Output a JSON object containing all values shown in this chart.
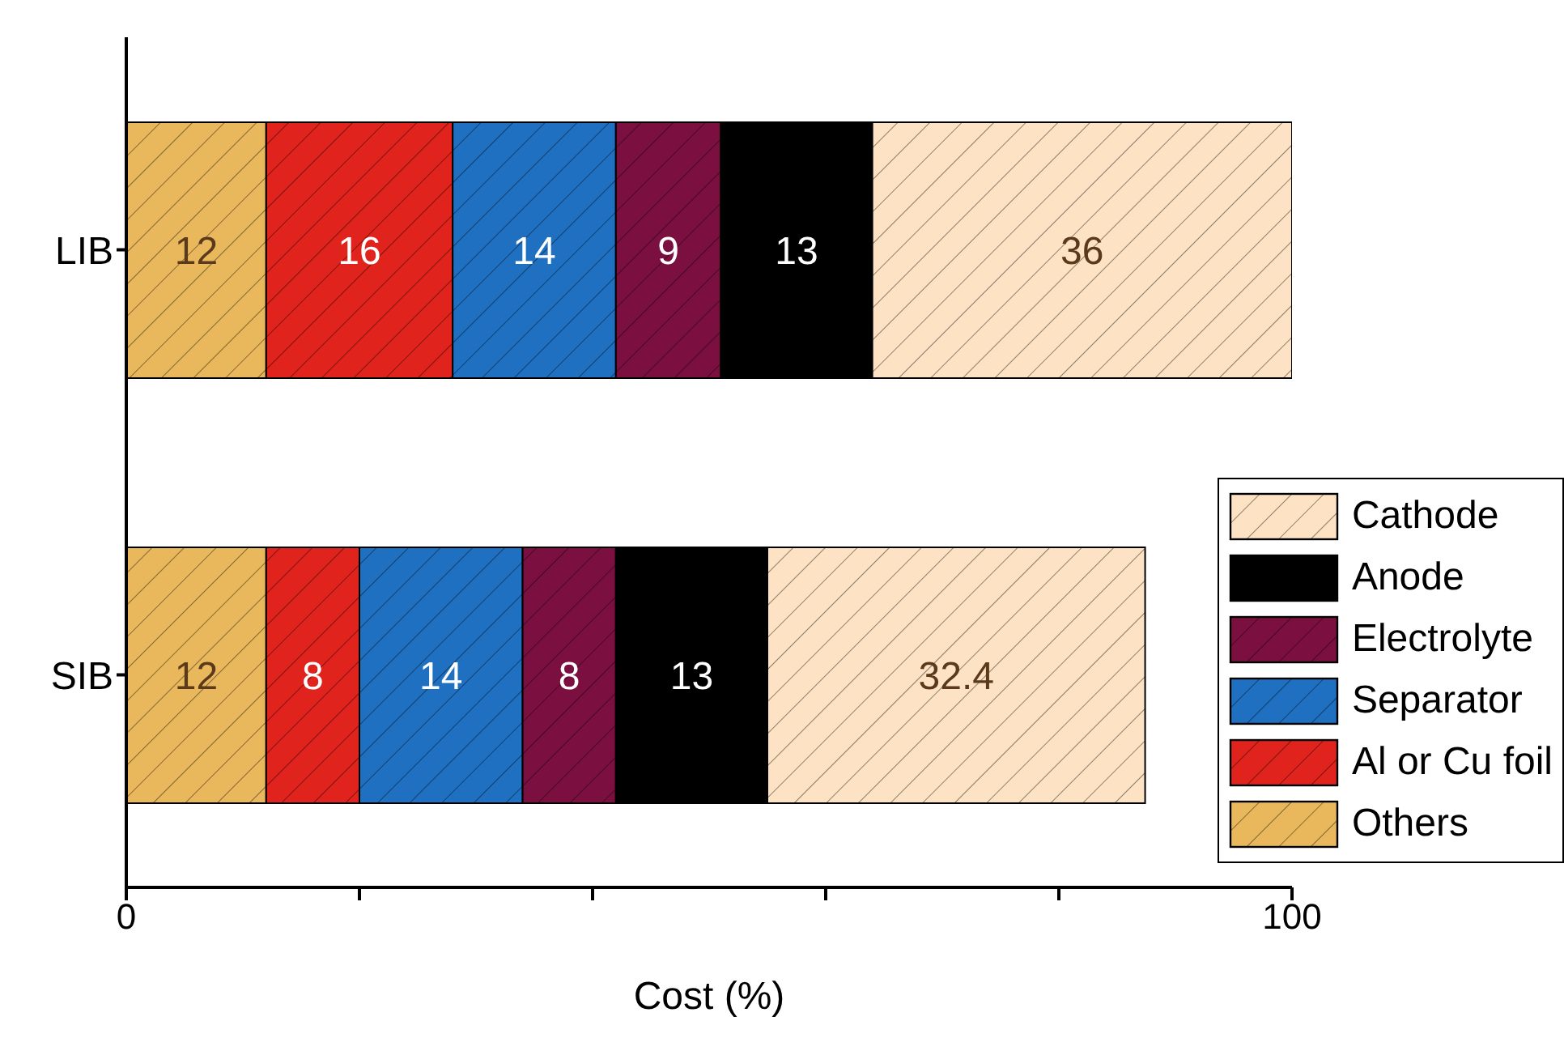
{
  "chart_data": {
    "type": "bar",
    "orientation": "horizontal",
    "stacked": true,
    "xlabel": "Cost (%)",
    "categories": [
      "LIB",
      "SIB"
    ],
    "series": [
      {
        "name": "Others",
        "color": "#eab85c",
        "values": [
          12,
          12
        ]
      },
      {
        "name": "Al or Cu foil",
        "color": "#e0231c",
        "values": [
          16,
          8
        ]
      },
      {
        "name": "Separator",
        "color": "#1f70c1",
        "values": [
          14,
          14
        ]
      },
      {
        "name": "Electrolyte",
        "color": "#7b1040",
        "values": [
          9,
          8
        ]
      },
      {
        "name": "Anode",
        "color": "#000000",
        "values": [
          13,
          13
        ]
      },
      {
        "name": "Cathode",
        "color": "#fde2c4",
        "values": [
          36,
          32.4
        ]
      }
    ],
    "xlim": [
      0,
      100
    ],
    "xticks": [
      0,
      {
        "value": 20,
        "label": null
      },
      {
        "value": 40,
        "label": null
      },
      {
        "value": 60,
        "label": null
      },
      {
        "value": 80,
        "label": null
      },
      100
    ],
    "data_labels": true,
    "legend": "bottom right"
  }
}
